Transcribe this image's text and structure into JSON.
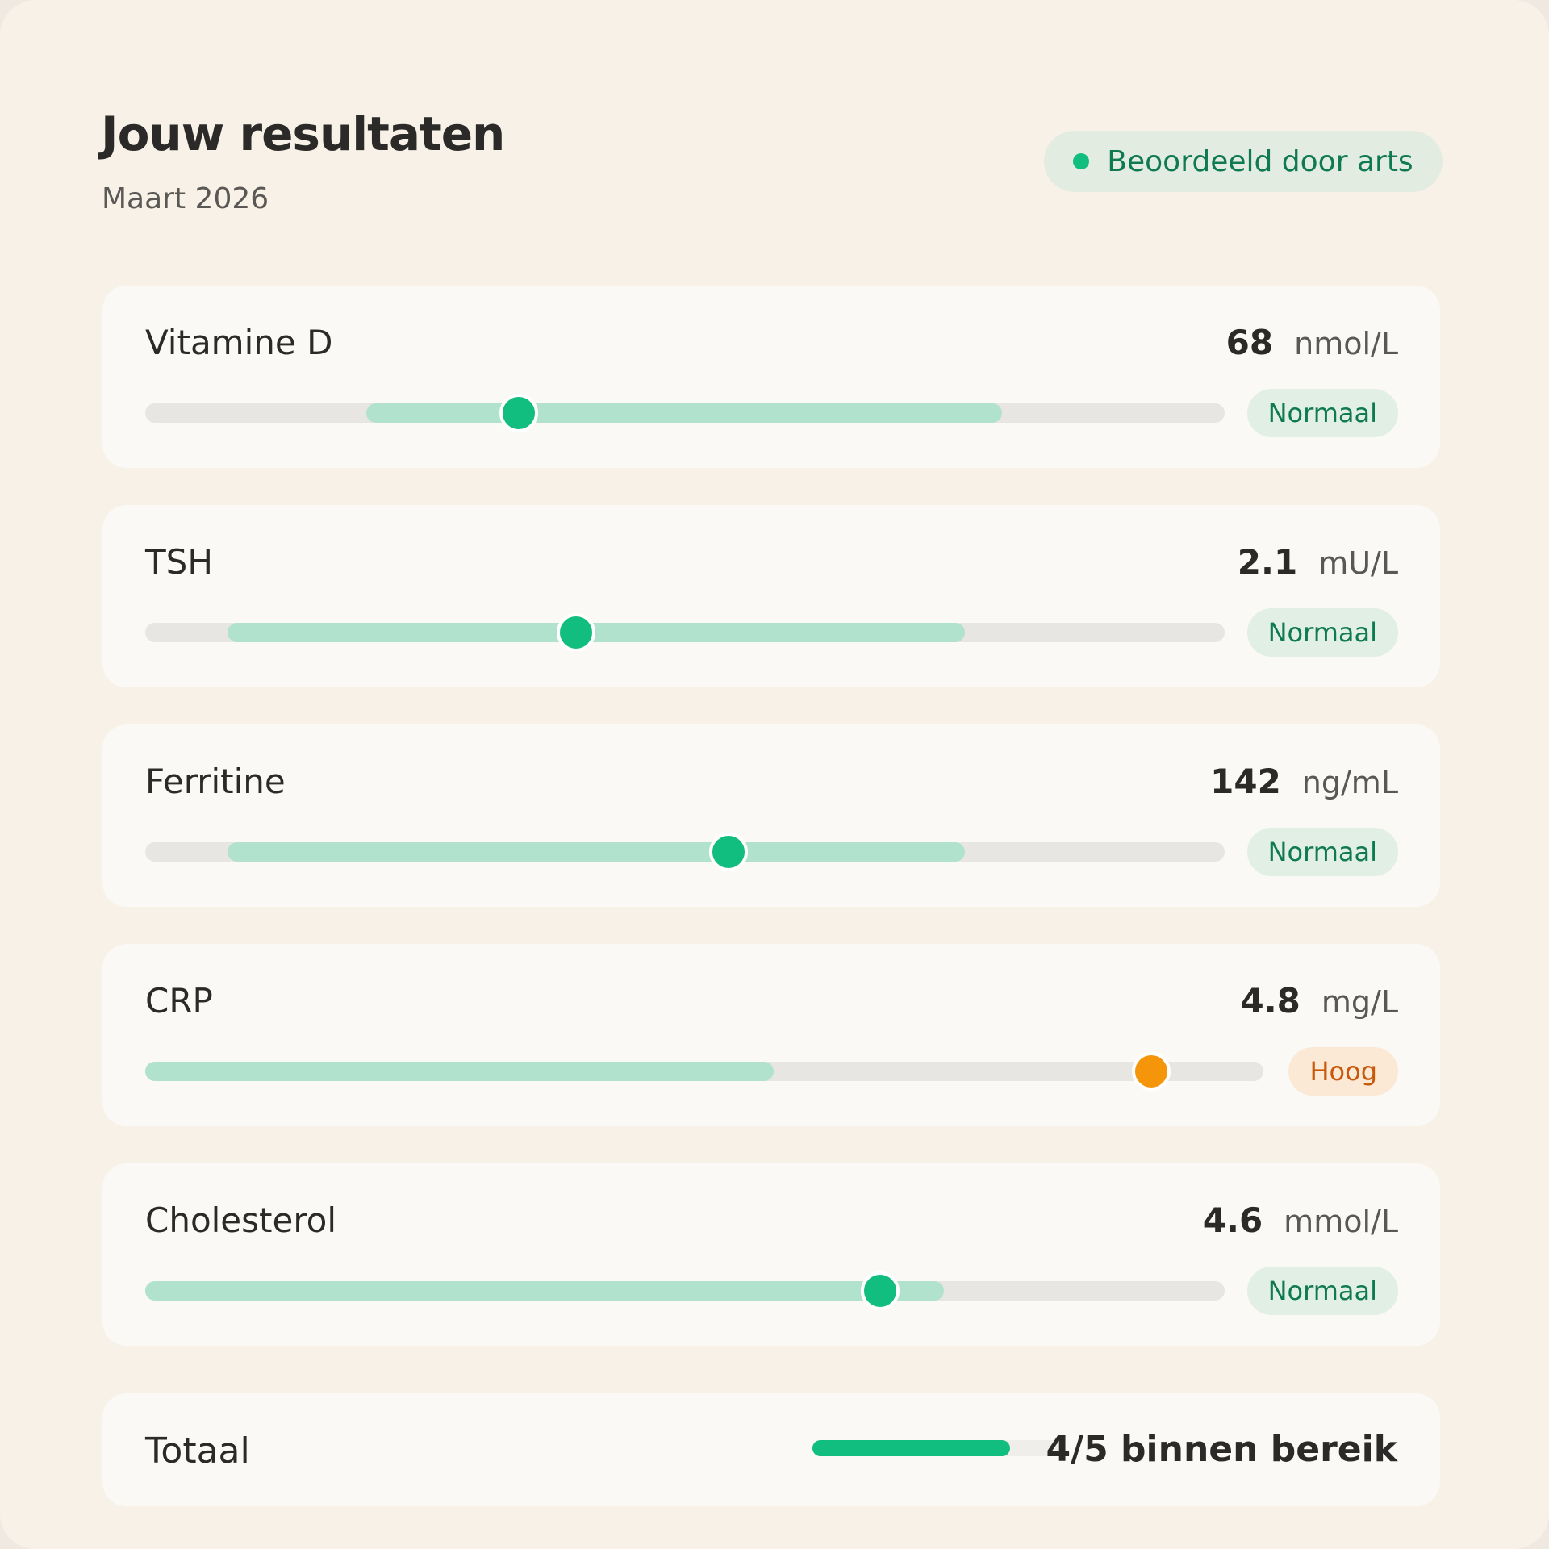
{
  "header": {
    "title": "Jouw resultaten",
    "subtitle": "Maart 2026",
    "badge": "Beoordeeld door arts"
  },
  "results": [
    {
      "name": "Vitamine D",
      "value": 68,
      "unit": "nmol/L",
      "status": "Normaal"
    },
    {
      "name": "TSH",
      "value": 2.1,
      "unit": "mU/L",
      "status": "Normaal"
    },
    {
      "name": "Ferritine",
      "value": 142,
      "unit": "ng/mL",
      "status": "Normaal"
    },
    {
      "name": "CRP",
      "value": 4.8,
      "unit": "mg/L",
      "status": "Hoog"
    },
    {
      "name": "Cholesterol",
      "value": 4.6,
      "unit": "mmol/L",
      "status": "Normaal"
    }
  ],
  "summary": {
    "label": "Totaal",
    "text": "4/5 binnen bereik"
  }
}
